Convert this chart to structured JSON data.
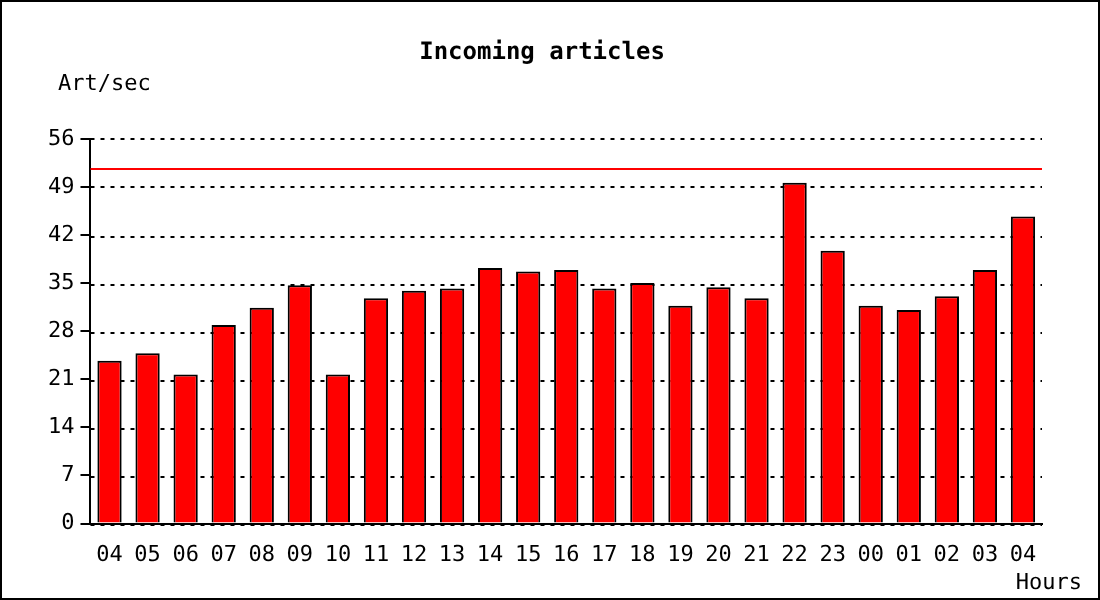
{
  "chart_data": {
    "type": "bar",
    "title": "Incoming articles",
    "xlabel": "Hours",
    "ylabel": "Art/sec",
    "categories": [
      "04",
      "05",
      "06",
      "07",
      "08",
      "09",
      "10",
      "11",
      "12",
      "13",
      "14",
      "15",
      "16",
      "17",
      "18",
      "19",
      "20",
      "21",
      "22",
      "23",
      "00",
      "01",
      "02",
      "03",
      "04"
    ],
    "values": [
      23.7,
      24.8,
      21.7,
      28.9,
      31.4,
      34.7,
      21.7,
      32.8,
      33.9,
      34.2,
      37.2,
      36.7,
      36.9,
      34.2,
      35.0,
      31.7,
      34.4,
      32.8,
      49.6,
      39.7,
      31.7,
      31.1,
      33.1,
      36.9,
      44.7
    ],
    "color": "#ff0000",
    "ylim": [
      0,
      56
    ],
    "yticks": [
      0,
      7,
      14,
      21,
      28,
      35,
      42,
      49,
      56
    ],
    "grid": "y",
    "line_style": "dotted",
    "legend": false,
    "ref_lines": [
      {
        "axis": "y",
        "value": 51.6,
        "color": "#ff0000"
      }
    ]
  }
}
